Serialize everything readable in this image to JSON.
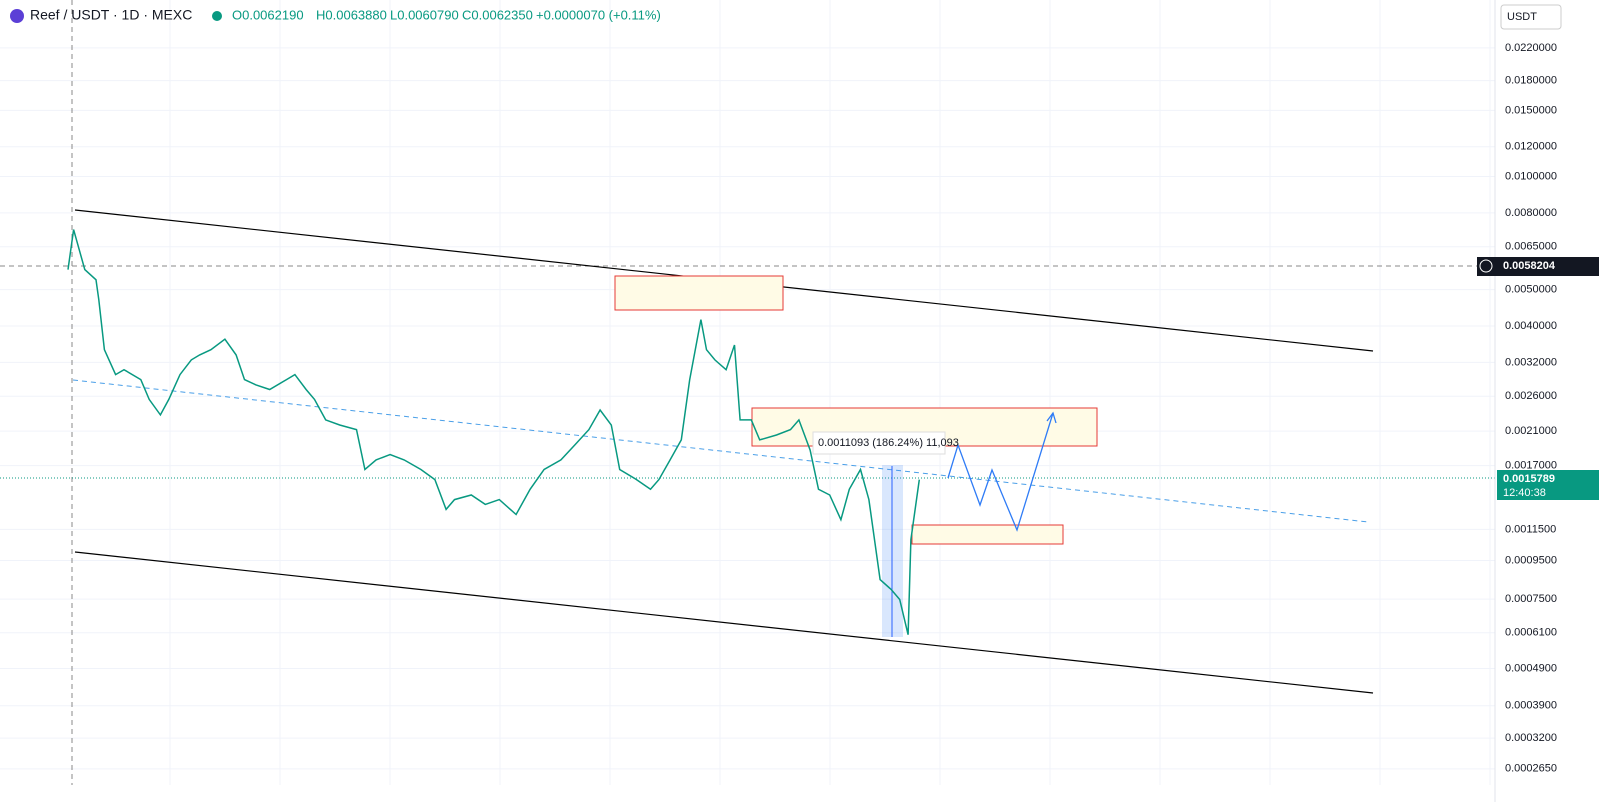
{
  "header": {
    "symbol": "Reef / USDT · 1D · MEXC",
    "open": "O0.0062190",
    "high": "H0.0063880",
    "low": "L0.0060790",
    "close": "C0.0062350",
    "change": "+0.0000070 (+0.11%)",
    "currency": "USDT",
    "measure": "0.0011093 (186.24%) 11,093",
    "crosshair_price": "0.0058204",
    "last_price": "0.0015789",
    "countdown": "12:40:38"
  },
  "chart_data": {
    "type": "line",
    "log_scale": true,
    "grid": true,
    "xlim": [
      -24.3,
      509.6
    ],
    "ylim": [
      0.00024,
      0.0295
    ],
    "yticks": [
      {
        "value": 0.022,
        "label": "0.0220000"
      },
      {
        "value": 0.018,
        "label": "0.0180000"
      },
      {
        "value": 0.015,
        "label": "0.0150000"
      },
      {
        "value": 0.012,
        "label": "0.0120000"
      },
      {
        "value": 0.01,
        "label": "0.0100000"
      },
      {
        "value": 0.008,
        "label": "0.0080000"
      },
      {
        "value": 0.0065,
        "label": "0.0065000"
      },
      {
        "value": 0.005,
        "label": "0.0050000"
      },
      {
        "value": 0.004,
        "label": "0.0040000"
      },
      {
        "value": 0.0032,
        "label": "0.0032000"
      },
      {
        "value": 0.0026,
        "label": "0.0026000"
      },
      {
        "value": 0.0021,
        "label": "0.0021000"
      },
      {
        "value": 0.0017,
        "label": "0.0017000"
      },
      {
        "value": 0.00115,
        "label": "0.0011500"
      },
      {
        "value": 0.00095,
        "label": "0.0009500"
      },
      {
        "value": 0.00075,
        "label": "0.0007500"
      },
      {
        "value": 0.00061,
        "label": "0.0006100"
      },
      {
        "value": 0.00049,
        "label": "0.0004900"
      },
      {
        "value": 0.00039,
        "label": "0.0003900"
      },
      {
        "value": 0.00032,
        "label": "0.0003200"
      },
      {
        "value": 0.000265,
        "label": "0.0002650"
      }
    ],
    "series": [
      {
        "color": "#089981",
        "x": [
          0,
          2,
          6,
          10,
          11,
          13,
          17,
          20,
          26,
          29,
          33,
          36,
          40,
          44,
          47,
          51,
          56,
          60,
          63,
          67,
          72,
          78,
          81,
          85,
          88,
          92,
          97,
          103,
          106,
          110,
          115,
          120,
          126,
          131,
          135,
          138,
          144,
          149,
          154,
          160,
          165,
          170,
          176,
          181,
          186,
          190,
          194,
          197,
          203,
          208,
          211,
          215,
          219,
          222,
          226,
          228,
          231,
          235,
          238,
          240,
          244,
          247,
          253,
          258,
          261,
          265,
          268,
          272,
          276,
          279,
          283,
          286,
          290,
          294,
          297,
          300,
          301,
          304
        ],
        "values": [
          0.00565,
          0.00722,
          0.00565,
          0.00531,
          0.0047,
          0.00346,
          0.00297,
          0.00306,
          0.00288,
          0.00255,
          0.00232,
          0.00255,
          0.00297,
          0.00325,
          0.00335,
          0.00346,
          0.00369,
          0.00335,
          0.00288,
          0.00279,
          0.00271,
          0.00288,
          0.00297,
          0.00271,
          0.00255,
          0.00225,
          0.00218,
          0.00212,
          0.00166,
          0.00176,
          0.00182,
          0.00176,
          0.00166,
          0.00156,
          0.0013,
          0.00138,
          0.00142,
          0.00134,
          0.00138,
          0.00126,
          0.00147,
          0.00166,
          0.00176,
          0.00193,
          0.00212,
          0.00239,
          0.00218,
          0.00166,
          0.00156,
          0.00147,
          0.00156,
          0.00176,
          0.00199,
          0.00288,
          0.00416,
          0.00346,
          0.00325,
          0.00306,
          0.00356,
          0.00225,
          0.00225,
          0.00199,
          0.00205,
          0.00212,
          0.00225,
          0.00187,
          0.00147,
          0.00142,
          0.00122,
          0.00147,
          0.00166,
          0.00138,
          0.000845,
          0.000795,
          0.000748,
          0.000603,
          0.00108,
          0.00156
        ]
      }
    ]
  }
}
